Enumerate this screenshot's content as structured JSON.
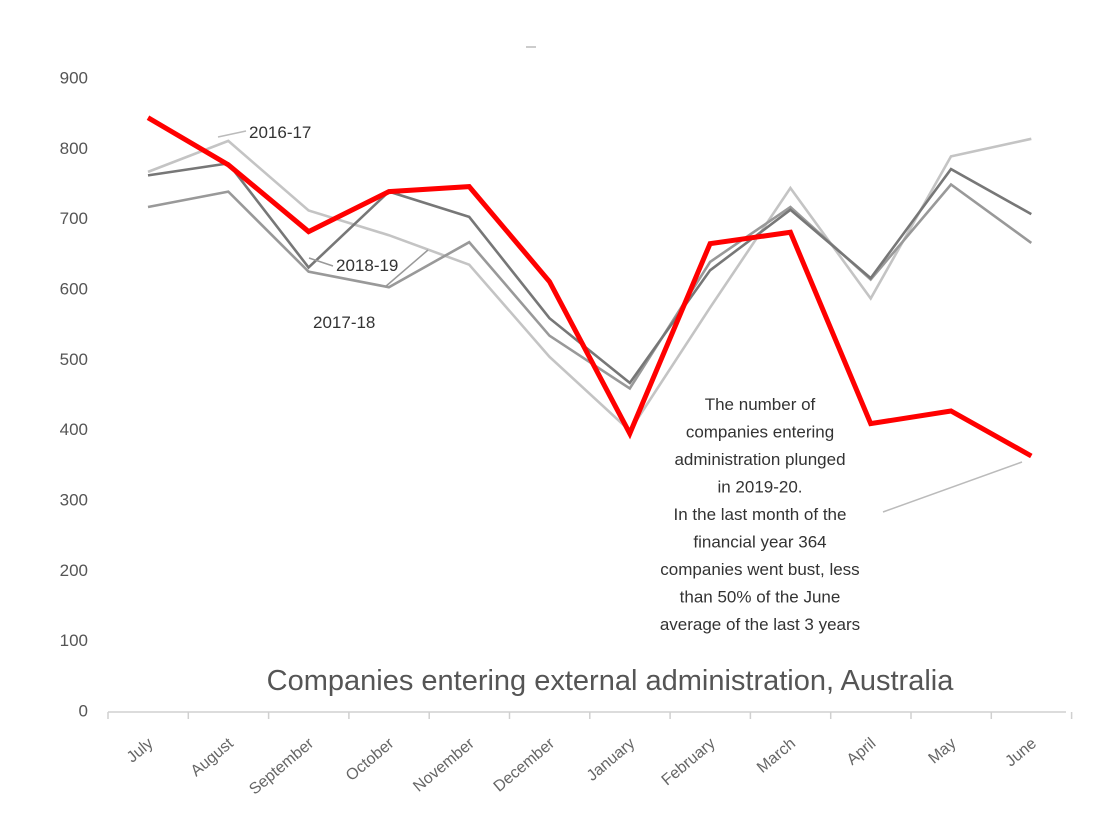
{
  "chart_data": {
    "type": "line",
    "title": "Companies entering external administration, Australia",
    "xlabel": "",
    "ylabel": "",
    "ylim": [
      0,
      900
    ],
    "yticks": [
      0,
      100,
      200,
      300,
      400,
      500,
      600,
      700,
      800,
      900
    ],
    "categories": [
      "July",
      "August",
      "September",
      "October",
      "November",
      "December",
      "January",
      "February",
      "March",
      "April",
      "May",
      "June"
    ],
    "grid": false,
    "series": [
      {
        "name": "2016-17",
        "color": "#c4c4c4",
        "values": [
          768,
          812,
          713,
          678,
          636,
          505,
          400,
          575,
          745,
          588,
          790,
          815
        ]
      },
      {
        "name": "2017-18",
        "color": "#999999",
        "values": [
          718,
          740,
          626,
          604,
          668,
          535,
          460,
          640,
          718,
          615,
          750,
          667
        ]
      },
      {
        "name": "2018-19",
        "color": "#777777",
        "values": [
          763,
          780,
          632,
          740,
          704,
          560,
          468,
          628,
          714,
          617,
          772,
          708
        ]
      },
      {
        "name": "",
        "color": "#ff0000",
        "values": [
          845,
          778,
          683,
          740,
          747,
          612,
          396,
          666,
          682,
          410,
          428,
          364
        ]
      }
    ],
    "annotation": {
      "lines": [
        "The number of",
        "companies entering",
        "administration plunged",
        "in 2019-20.",
        "In the last month of the",
        "financial year 364",
        "companies went bust, less",
        "than 50% of the June",
        "average of the last 3 years"
      ]
    }
  }
}
